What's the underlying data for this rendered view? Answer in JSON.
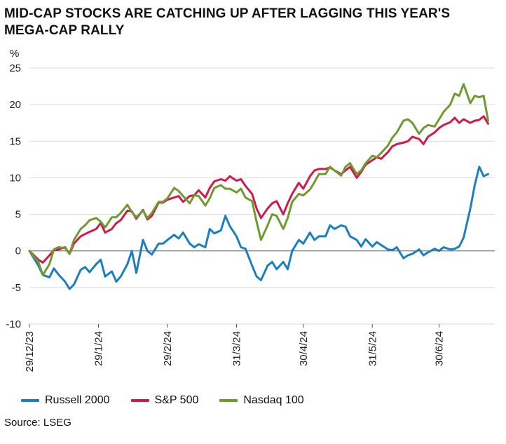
{
  "chart_data": {
    "type": "line",
    "title": "MID-CAP STOCKS ARE CATCHING UP AFTER LAGGING THIS YEAR'S MEGA-CAP RALLY",
    "ylabel": "%",
    "xlabel": "",
    "ylim": [
      -10,
      25
    ],
    "yticks": [
      25,
      20,
      15,
      10,
      5,
      0,
      -5,
      -10
    ],
    "xlim": [
      "2023-12-29",
      "2024-07-25"
    ],
    "xticks": [
      "29/12/23",
      "29/1/24",
      "29/2/24",
      "31/3/24",
      "30/4/24",
      "31/5/24",
      "30/6/24"
    ],
    "grid": "horizontal",
    "legend_position": "bottom-left",
    "source": "Source: LSEG",
    "series": [
      {
        "name": "Russell 2000",
        "color": "#1a7fc1",
        "points": [
          [
            "2023-12-29",
            0
          ],
          [
            "2024-01-02",
            -2
          ],
          [
            "2024-01-04",
            -3.3
          ],
          [
            "2024-01-07",
            -3.6
          ],
          [
            "2024-01-09",
            -2.4
          ],
          [
            "2024-01-11",
            -3.2
          ],
          [
            "2024-01-14",
            -4.2
          ],
          [
            "2024-01-16",
            -5.2
          ],
          [
            "2024-01-18",
            -4.6
          ],
          [
            "2024-01-21",
            -2.6
          ],
          [
            "2024-01-23",
            -2.2
          ],
          [
            "2024-01-25",
            -2.9
          ],
          [
            "2024-01-28",
            -1.8
          ],
          [
            "2024-01-30",
            -1.2
          ],
          [
            "2024-02-01",
            -3.5
          ],
          [
            "2024-02-04",
            -2.8
          ],
          [
            "2024-02-06",
            -4.2
          ],
          [
            "2024-02-08",
            -3.5
          ],
          [
            "2024-02-11",
            -1.8
          ],
          [
            "2024-02-13",
            0
          ],
          [
            "2024-02-15",
            -3
          ],
          [
            "2024-02-18",
            1.5
          ],
          [
            "2024-02-20",
            0
          ],
          [
            "2024-02-22",
            -0.5
          ],
          [
            "2024-02-25",
            1
          ],
          [
            "2024-02-27",
            1
          ],
          [
            "2024-02-29",
            1.5
          ],
          [
            "2024-03-03",
            2.2
          ],
          [
            "2024-03-05",
            1.7
          ],
          [
            "2024-03-07",
            2.5
          ],
          [
            "2024-03-10",
            1
          ],
          [
            "2024-03-12",
            0.5
          ],
          [
            "2024-03-14",
            0.9
          ],
          [
            "2024-03-17",
            0.5
          ],
          [
            "2024-03-19",
            3
          ],
          [
            "2024-03-21",
            2.4
          ],
          [
            "2024-03-24",
            2.8
          ],
          [
            "2024-03-26",
            4.8
          ],
          [
            "2024-03-28",
            3.4
          ],
          [
            "2024-03-31",
            2
          ],
          [
            "2024-04-02",
            0.5
          ],
          [
            "2024-04-04",
            0.3
          ],
          [
            "2024-04-07",
            -2
          ],
          [
            "2024-04-09",
            -3.5
          ],
          [
            "2024-04-11",
            -4
          ],
          [
            "2024-04-14",
            -2
          ],
          [
            "2024-04-16",
            -1.5
          ],
          [
            "2024-04-18",
            -2.5
          ],
          [
            "2024-04-21",
            -1.5
          ],
          [
            "2024-04-23",
            -2.5
          ],
          [
            "2024-04-25",
            0
          ],
          [
            "2024-04-28",
            1.5
          ],
          [
            "2024-04-30",
            1
          ],
          [
            "2024-05-03",
            2.5
          ],
          [
            "2024-05-05",
            1.5
          ],
          [
            "2024-05-07",
            2
          ],
          [
            "2024-05-10",
            2
          ],
          [
            "2024-05-12",
            3.5
          ],
          [
            "2024-05-14",
            3
          ],
          [
            "2024-05-17",
            3.5
          ],
          [
            "2024-05-19",
            3.3
          ],
          [
            "2024-05-21",
            2
          ],
          [
            "2024-05-24",
            1.5
          ],
          [
            "2024-05-26",
            0.6
          ],
          [
            "2024-05-28",
            1.6
          ],
          [
            "2024-05-31",
            0.6
          ],
          [
            "2024-06-02",
            1.2
          ],
          [
            "2024-06-04",
            0.8
          ],
          [
            "2024-06-07",
            0.2
          ],
          [
            "2024-06-09",
            0.1
          ],
          [
            "2024-06-11",
            0.5
          ],
          [
            "2024-06-14",
            -1
          ],
          [
            "2024-06-16",
            -0.6
          ],
          [
            "2024-06-18",
            -0.4
          ],
          [
            "2024-06-21",
            0.2
          ],
          [
            "2024-06-23",
            -0.6
          ],
          [
            "2024-06-25",
            -0.2
          ],
          [
            "2024-06-28",
            0.3
          ],
          [
            "2024-06-30",
            0
          ],
          [
            "2024-07-02",
            0.5
          ],
          [
            "2024-07-05",
            0.2
          ],
          [
            "2024-07-07",
            0.3
          ],
          [
            "2024-07-09",
            0.6
          ],
          [
            "2024-07-11",
            1.8
          ],
          [
            "2024-07-14",
            5.8
          ],
          [
            "2024-07-16",
            9
          ],
          [
            "2024-07-18",
            11.5
          ],
          [
            "2024-07-20",
            10.2
          ],
          [
            "2024-07-22",
            10.5
          ]
        ]
      },
      {
        "name": "S&P 500",
        "color": "#cf1a4a",
        "points": [
          [
            "2023-12-29",
            0
          ],
          [
            "2024-01-02",
            -1.2
          ],
          [
            "2024-01-04",
            -1.6
          ],
          [
            "2024-01-07",
            -0.6
          ],
          [
            "2024-01-09",
            0.1
          ],
          [
            "2024-01-11",
            0.2
          ],
          [
            "2024-01-14",
            0.5
          ],
          [
            "2024-01-16",
            -0.4
          ],
          [
            "2024-01-18",
            1
          ],
          [
            "2024-01-21",
            2
          ],
          [
            "2024-01-23",
            2.3
          ],
          [
            "2024-01-25",
            2.6
          ],
          [
            "2024-01-28",
            3
          ],
          [
            "2024-01-30",
            3.8
          ],
          [
            "2024-02-01",
            2.5
          ],
          [
            "2024-02-04",
            3
          ],
          [
            "2024-02-06",
            3.8
          ],
          [
            "2024-02-08",
            4.2
          ],
          [
            "2024-02-11",
            5.5
          ],
          [
            "2024-02-13",
            5.4
          ],
          [
            "2024-02-15",
            4.4
          ],
          [
            "2024-02-18",
            5.6
          ],
          [
            "2024-02-20",
            4.3
          ],
          [
            "2024-02-22",
            4.8
          ],
          [
            "2024-02-25",
            6.6
          ],
          [
            "2024-02-27",
            6.6
          ],
          [
            "2024-02-29",
            7
          ],
          [
            "2024-03-03",
            7.3
          ],
          [
            "2024-03-05",
            7.5
          ],
          [
            "2024-03-07",
            6.7
          ],
          [
            "2024-03-10",
            7.5
          ],
          [
            "2024-03-12",
            7.6
          ],
          [
            "2024-03-14",
            8.3
          ],
          [
            "2024-03-17",
            7.3
          ],
          [
            "2024-03-19",
            8.6
          ],
          [
            "2024-03-21",
            9.5
          ],
          [
            "2024-03-24",
            9.8
          ],
          [
            "2024-03-26",
            9.6
          ],
          [
            "2024-03-28",
            10.2
          ],
          [
            "2024-03-31",
            9.6
          ],
          [
            "2024-04-02",
            9.8
          ],
          [
            "2024-04-04",
            8.9
          ],
          [
            "2024-04-07",
            7.8
          ],
          [
            "2024-04-09",
            5.8
          ],
          [
            "2024-04-11",
            4.5
          ],
          [
            "2024-04-14",
            5.8
          ],
          [
            "2024-04-16",
            6.5
          ],
          [
            "2024-04-18",
            6.8
          ],
          [
            "2024-04-21",
            5
          ],
          [
            "2024-04-23",
            6.5
          ],
          [
            "2024-04-25",
            7.8
          ],
          [
            "2024-04-28",
            9.3
          ],
          [
            "2024-04-30",
            8.5
          ],
          [
            "2024-05-03",
            10.2
          ],
          [
            "2024-05-05",
            11
          ],
          [
            "2024-05-07",
            11.2
          ],
          [
            "2024-05-10",
            11.2
          ],
          [
            "2024-05-12",
            11.4
          ],
          [
            "2024-05-14",
            11
          ],
          [
            "2024-05-17",
            10.5
          ],
          [
            "2024-05-19",
            11
          ],
          [
            "2024-05-21",
            11.5
          ],
          [
            "2024-05-24",
            10
          ],
          [
            "2024-05-26",
            10.8
          ],
          [
            "2024-05-28",
            11.8
          ],
          [
            "2024-05-31",
            12.4
          ],
          [
            "2024-06-02",
            12.8
          ],
          [
            "2024-06-04",
            12.6
          ],
          [
            "2024-06-07",
            13.5
          ],
          [
            "2024-06-09",
            14.3
          ],
          [
            "2024-06-11",
            14.6
          ],
          [
            "2024-06-14",
            14.8
          ],
          [
            "2024-06-16",
            15
          ],
          [
            "2024-06-18",
            15.6
          ],
          [
            "2024-06-21",
            15.3
          ],
          [
            "2024-06-23",
            14.6
          ],
          [
            "2024-06-25",
            15.6
          ],
          [
            "2024-06-28",
            16.2
          ],
          [
            "2024-06-30",
            16.8
          ],
          [
            "2024-07-02",
            17.2
          ],
          [
            "2024-07-05",
            17.6
          ],
          [
            "2024-07-07",
            18.2
          ],
          [
            "2024-07-09",
            17.5
          ],
          [
            "2024-07-11",
            18
          ],
          [
            "2024-07-14",
            17.5
          ],
          [
            "2024-07-16",
            17.8
          ],
          [
            "2024-07-18",
            17.9
          ],
          [
            "2024-07-20",
            18.4
          ],
          [
            "2024-07-22",
            17.4
          ]
        ]
      },
      {
        "name": "Nasdaq 100",
        "color": "#6e9a2e",
        "points": [
          [
            "2023-12-29",
            0
          ],
          [
            "2024-01-02",
            -1.5
          ],
          [
            "2024-01-04",
            -3.3
          ],
          [
            "2024-01-07",
            -1.8
          ],
          [
            "2024-01-09",
            0.2
          ],
          [
            "2024-01-11",
            0.5
          ],
          [
            "2024-01-14",
            0.4
          ],
          [
            "2024-01-16",
            -0.4
          ],
          [
            "2024-01-18",
            1.5
          ],
          [
            "2024-01-21",
            3
          ],
          [
            "2024-01-23",
            3.5
          ],
          [
            "2024-01-25",
            4.2
          ],
          [
            "2024-01-28",
            4.5
          ],
          [
            "2024-01-30",
            4
          ],
          [
            "2024-02-01",
            3.2
          ],
          [
            "2024-02-04",
            4.6
          ],
          [
            "2024-02-06",
            4.6
          ],
          [
            "2024-02-08",
            5.2
          ],
          [
            "2024-02-11",
            6.3
          ],
          [
            "2024-02-13",
            5.3
          ],
          [
            "2024-02-15",
            4.6
          ],
          [
            "2024-02-18",
            5.5
          ],
          [
            "2024-02-20",
            4.5
          ],
          [
            "2024-02-22",
            5.2
          ],
          [
            "2024-02-25",
            6.7
          ],
          [
            "2024-02-27",
            6.7
          ],
          [
            "2024-02-29",
            7.2
          ],
          [
            "2024-03-03",
            8.6
          ],
          [
            "2024-03-05",
            8.2
          ],
          [
            "2024-03-07",
            7.5
          ],
          [
            "2024-03-10",
            6.5
          ],
          [
            "2024-03-12",
            7.6
          ],
          [
            "2024-03-14",
            7.5
          ],
          [
            "2024-03-17",
            6.2
          ],
          [
            "2024-03-19",
            7.2
          ],
          [
            "2024-03-21",
            8.6
          ],
          [
            "2024-03-24",
            9
          ],
          [
            "2024-03-26",
            8.5
          ],
          [
            "2024-03-28",
            8.5
          ],
          [
            "2024-03-31",
            8
          ],
          [
            "2024-04-02",
            8.5
          ],
          [
            "2024-04-04",
            7.3
          ],
          [
            "2024-04-07",
            6.8
          ],
          [
            "2024-04-09",
            4
          ],
          [
            "2024-04-11",
            1.5
          ],
          [
            "2024-04-14",
            3.5
          ],
          [
            "2024-04-16",
            5
          ],
          [
            "2024-04-18",
            4.8
          ],
          [
            "2024-04-21",
            3
          ],
          [
            "2024-04-23",
            4.5
          ],
          [
            "2024-04-25",
            6.7
          ],
          [
            "2024-04-28",
            7.8
          ],
          [
            "2024-04-30",
            7.6
          ],
          [
            "2024-05-03",
            8.4
          ],
          [
            "2024-05-05",
            9.4
          ],
          [
            "2024-05-07",
            10.5
          ],
          [
            "2024-05-10",
            10.5
          ],
          [
            "2024-05-12",
            11.5
          ],
          [
            "2024-05-14",
            11
          ],
          [
            "2024-05-17",
            10.3
          ],
          [
            "2024-05-19",
            11.5
          ],
          [
            "2024-05-21",
            12
          ],
          [
            "2024-05-24",
            10.5
          ],
          [
            "2024-05-26",
            11
          ],
          [
            "2024-05-28",
            12
          ],
          [
            "2024-05-31",
            13
          ],
          [
            "2024-06-02",
            12.8
          ],
          [
            "2024-06-04",
            13.4
          ],
          [
            "2024-06-07",
            14.4
          ],
          [
            "2024-06-09",
            15.5
          ],
          [
            "2024-06-11",
            16.2
          ],
          [
            "2024-06-14",
            17.8
          ],
          [
            "2024-06-16",
            18
          ],
          [
            "2024-06-18",
            17.5
          ],
          [
            "2024-06-21",
            16
          ],
          [
            "2024-06-23",
            16.8
          ],
          [
            "2024-06-25",
            17.2
          ],
          [
            "2024-06-28",
            17
          ],
          [
            "2024-06-30",
            18
          ],
          [
            "2024-07-02",
            19
          ],
          [
            "2024-07-05",
            20
          ],
          [
            "2024-07-07",
            21.5
          ],
          [
            "2024-07-09",
            21.2
          ],
          [
            "2024-07-11",
            22.8
          ],
          [
            "2024-07-14",
            20.2
          ],
          [
            "2024-07-16",
            21.2
          ],
          [
            "2024-07-18",
            21
          ],
          [
            "2024-07-20",
            21.2
          ],
          [
            "2024-07-22",
            17.8
          ]
        ]
      }
    ]
  }
}
